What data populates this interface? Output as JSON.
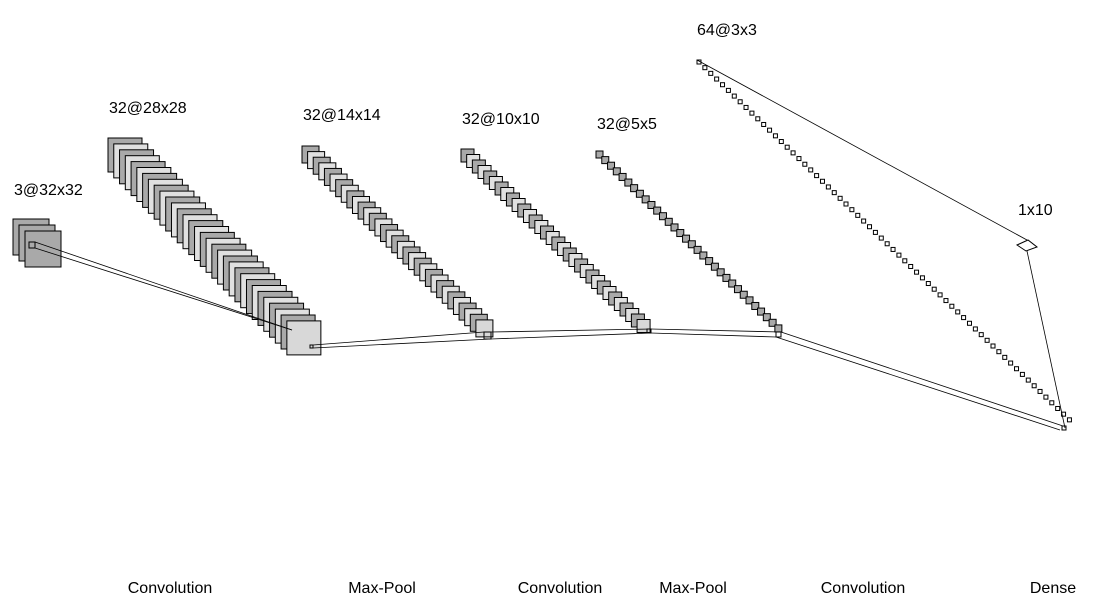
{
  "layers": [
    {
      "label": "3@32x32",
      "maps": 3
    },
    {
      "label": "32@28x28",
      "maps": 32
    },
    {
      "label": "32@14x14",
      "maps": 32
    },
    {
      "label": "32@10x10",
      "maps": 32
    },
    {
      "label": "32@5x5",
      "maps": 32
    },
    {
      "label": "64@3x3",
      "maps": 64
    },
    {
      "label": "1x10",
      "maps": 1
    }
  ],
  "operations": [
    "Convolution",
    "Max-Pool",
    "Convolution",
    "Max-Pool",
    "Convolution",
    "Dense"
  ],
  "colors": {
    "stroke": "#000000",
    "fill_dark": "#a9a9a9",
    "fill_light": "#e0e0e0",
    "fill_last": "#d8d8d8"
  }
}
